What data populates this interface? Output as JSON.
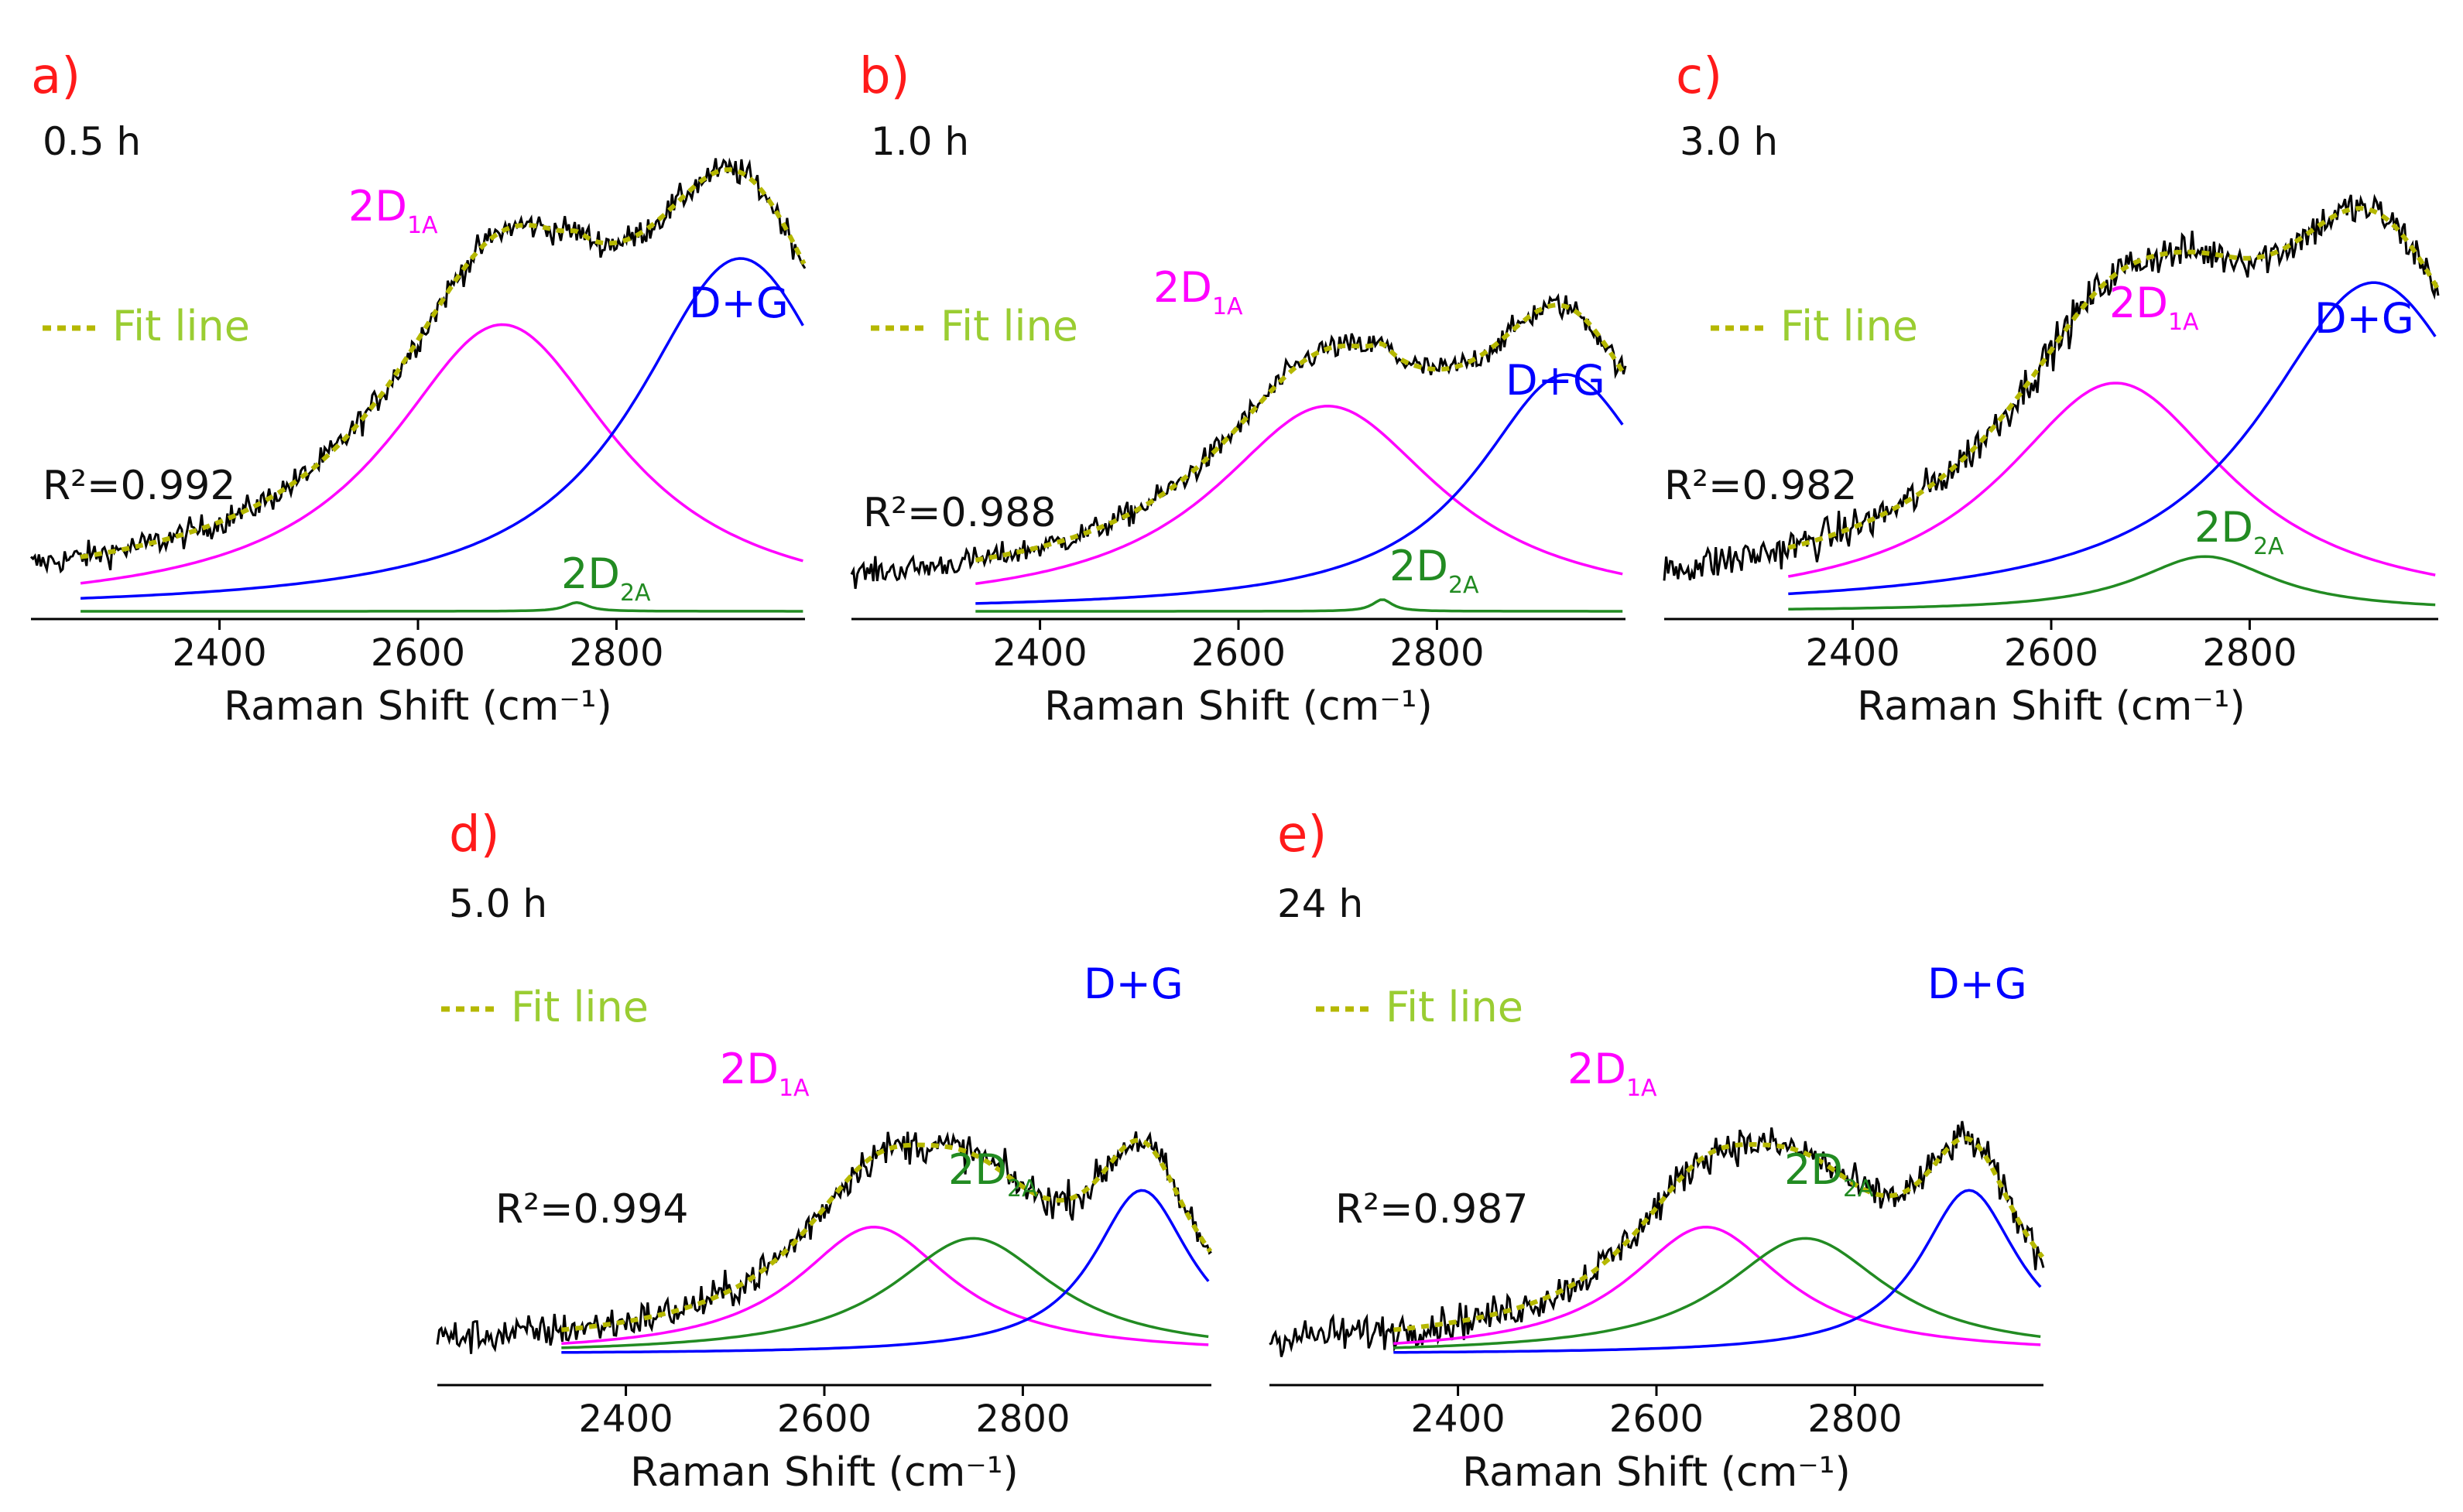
{
  "figure": {
    "legend_label": "Fit line",
    "peak_labels": {
      "p1": "2D",
      "p1_sub": "1A",
      "p2": "2D",
      "p2_sub": "2A",
      "p3": "D+G"
    },
    "colors": {
      "data": "#000000",
      "fit": "#b5b800",
      "p1": "#ff00ff",
      "p2": "#228b22",
      "p3": "#0000ff",
      "letter": "#ff1a1a",
      "legend": "#9acd32"
    }
  },
  "chart_data": [
    {
      "type": "line",
      "panel": "a)",
      "time": "0.5 h",
      "r2": "R²=0.992",
      "xlabel": "Raman Shift (cm⁻¹)",
      "x_range": [
        2210,
        2990
      ],
      "ylim": [
        0,
        1.0
      ],
      "ticks": [
        2400,
        2600,
        2800
      ],
      "tick_labels": [
        "2400",
        "2600",
        "2800"
      ],
      "peaks": {
        "p1": {
          "center": 2685,
          "amp": 0.65,
          "hwhm": 140
        },
        "p2": {
          "center": 2760,
          "amp": 0.02,
          "hwhm": 14
        },
        "p3": {
          "center": 2925,
          "amp": 0.8,
          "hwhm": 130
        }
      },
      "baseline": 0.03,
      "noise": 0.03,
      "fit_start": 2260,
      "comp_start": 2260
    },
    {
      "type": "line",
      "panel": "b)",
      "time": "1.0 h",
      "r2": "R²=0.988",
      "xlabel": "Raman Shift (cm⁻¹)",
      "x_range": [
        2210,
        2990
      ],
      "ylim": [
        0,
        1.0
      ],
      "ticks": [
        2400,
        2600,
        2800
      ],
      "tick_labels": [
        "2400",
        "2600",
        "2800"
      ],
      "peaks": {
        "p1": {
          "center": 2690,
          "amp": 0.52,
          "hwhm": 140
        },
        "p2": {
          "center": 2745,
          "amp": 0.03,
          "hwhm": 12
        },
        "p3": {
          "center": 2930,
          "amp": 0.6,
          "hwhm": 110
        }
      },
      "baseline": 0.04,
      "noise": 0.03,
      "fit_start": 2335,
      "comp_start": 2335
    },
    {
      "type": "line",
      "panel": "c)",
      "time": "3.0 h",
      "r2": "R²=0.982",
      "xlabel": "Raman Shift (cm⁻¹)",
      "x_range": [
        2210,
        2990
      ],
      "ylim": [
        0,
        1.0
      ],
      "ticks": [
        2400,
        2600,
        2800
      ],
      "tick_labels": [
        "2400",
        "2600",
        "2800"
      ],
      "peaks": {
        "p1": {
          "center": 2665,
          "amp": 0.5,
          "hwhm": 140
        },
        "p2": {
          "center": 2755,
          "amp": 0.12,
          "hwhm": 85
        },
        "p3": {
          "center": 2925,
          "amp": 0.72,
          "hwhm": 140
        }
      },
      "baseline": 0.02,
      "noise": 0.04,
      "fit_start": 2335,
      "comp_start": 2335
    },
    {
      "type": "line",
      "panel": "d)",
      "time": "5.0 h",
      "r2": "R²=0.994",
      "xlabel": "Raman Shift (cm⁻¹)",
      "x_range": [
        2210,
        2990
      ],
      "ylim": [
        0,
        1.0
      ],
      "ticks": [
        2400,
        2600,
        2800
      ],
      "tick_labels": [
        "2400",
        "2600",
        "2800"
      ],
      "peaks": {
        "p1": {
          "center": 2650,
          "amp": 0.45,
          "hwhm": 95
        },
        "p2": {
          "center": 2750,
          "amp": 0.41,
          "hwhm": 100
        },
        "p3": {
          "center": 2920,
          "amp": 0.58,
          "hwhm": 60
        }
      },
      "baseline": 0.02,
      "noise": 0.06,
      "fit_start": 2335,
      "comp_start": 2335
    },
    {
      "type": "line",
      "panel": "e)",
      "time": "24 h",
      "r2": "R²=0.987",
      "xlabel": "Raman Shift (cm⁻¹)",
      "x_range": [
        2210,
        2990
      ],
      "ylim": [
        0,
        1.0
      ],
      "ticks": [
        2400,
        2600,
        2800
      ],
      "tick_labels": [
        "2400",
        "2600",
        "2800"
      ],
      "peaks": {
        "p1": {
          "center": 2650,
          "amp": 0.45,
          "hwhm": 95
        },
        "p2": {
          "center": 2750,
          "amp": 0.41,
          "hwhm": 100
        },
        "p3": {
          "center": 2915,
          "amp": 0.58,
          "hwhm": 60
        }
      },
      "baseline": 0.02,
      "noise": 0.06,
      "fit_start": 2335,
      "comp_start": 2335
    }
  ]
}
